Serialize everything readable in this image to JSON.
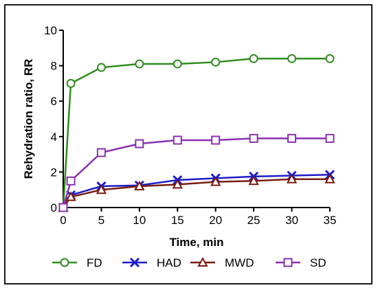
{
  "chart_data": {
    "type": "line",
    "xlabel": "Time, min",
    "ylabel": "Rehydration ratio, RR",
    "xlim": [
      0,
      35
    ],
    "ylim": [
      0,
      10
    ],
    "xticks": [
      0,
      5,
      10,
      15,
      20,
      25,
      30,
      35
    ],
    "yticks": [
      0,
      2,
      4,
      6,
      8,
      10
    ],
    "legend_position": "bottom",
    "series": [
      {
        "name": "FD",
        "color": "#2e8b1e",
        "marker": "circle",
        "x": [
          0,
          1,
          5,
          10,
          15,
          20,
          25,
          30,
          35
        ],
        "y": [
          0,
          7.0,
          7.9,
          8.1,
          8.1,
          8.2,
          8.4,
          8.4,
          8.4
        ]
      },
      {
        "name": "HAD",
        "color": "#1c1cc8",
        "marker": "x",
        "x": [
          0,
          1,
          5,
          10,
          15,
          20,
          25,
          30,
          35
        ],
        "y": [
          0,
          0.7,
          1.2,
          1.25,
          1.55,
          1.65,
          1.75,
          1.8,
          1.85
        ]
      },
      {
        "name": "MWD",
        "color": "#7a1a0e",
        "marker": "triangle",
        "x": [
          0,
          1,
          5,
          10,
          15,
          20,
          25,
          30,
          35
        ],
        "y": [
          0,
          0.6,
          1.0,
          1.2,
          1.3,
          1.45,
          1.5,
          1.6,
          1.6
        ]
      },
      {
        "name": "SD",
        "color": "#8a2fb0",
        "marker": "square",
        "x": [
          0,
          1,
          5,
          10,
          15,
          20,
          25,
          30,
          35
        ],
        "y": [
          0,
          1.5,
          3.1,
          3.6,
          3.8,
          3.8,
          3.9,
          3.9,
          3.9
        ]
      }
    ]
  }
}
